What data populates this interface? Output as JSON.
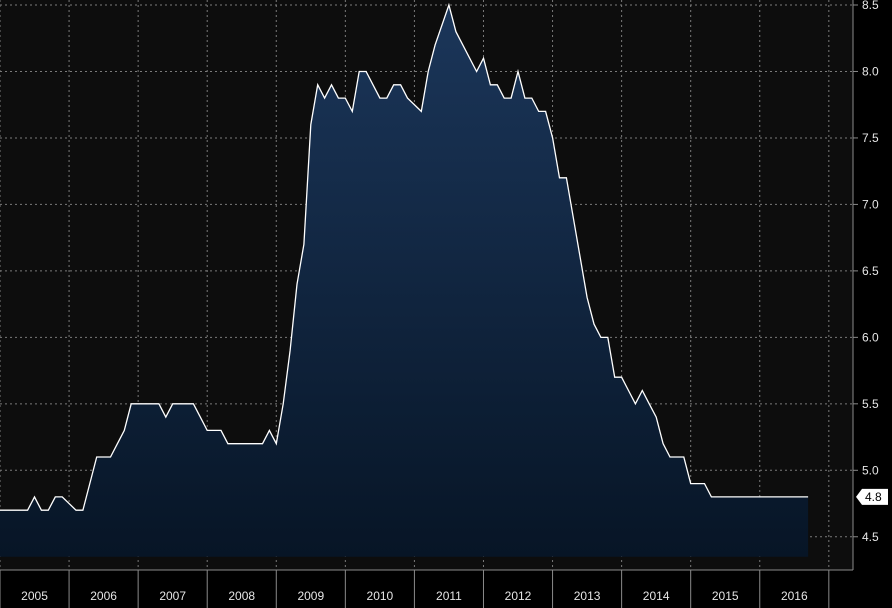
{
  "chart_data": {
    "type": "area",
    "title": "",
    "xlabel": "",
    "ylabel": "",
    "x_tick_labels": [
      "2005",
      "2006",
      "2007",
      "2008",
      "2009",
      "2010",
      "2011",
      "2012",
      "2013",
      "2014",
      "2015",
      "2016"
    ],
    "y_tick_labels": [
      "4.5",
      "5.0",
      "5.5",
      "6.0",
      "6.5",
      "7.0",
      "7.5",
      "8.0",
      "8.5"
    ],
    "ylim": [
      4.25,
      8.5
    ],
    "xlim": [
      2004.5,
      2016.85
    ],
    "grid": true,
    "last_value_label": "4.8",
    "colors": {
      "background": "#000000",
      "line": "#ffffff",
      "fill_top": "#1b365a",
      "fill_bottom": "#071526",
      "grid": "#7a7a7a",
      "badge": "#ffffff"
    },
    "series": [
      {
        "x": [
          2004.5,
          2004.9,
          2005.0,
          2005.1,
          2005.2,
          2005.3,
          2005.4,
          2005.6,
          2005.7,
          2005.9,
          2006.1,
          2006.2,
          2006.3,
          2006.4,
          2006.5,
          2006.8,
          2006.9,
          2007.0,
          2007.3,
          2007.4,
          2007.5,
          2007.7,
          2007.8,
          2008.0,
          2008.3,
          2008.4,
          2008.5,
          2008.6,
          2008.7,
          2008.8,
          2008.9,
          2009.0,
          2009.1,
          2009.2,
          2009.3,
          2009.4,
          2009.5,
          2009.6,
          2009.7,
          2009.8,
          2009.9,
          2010.0,
          2010.1,
          2010.2,
          2010.3,
          2010.4,
          2010.6,
          2010.7,
          2010.8,
          2011.0,
          2011.1,
          2011.2,
          2011.4,
          2011.5,
          2011.6,
          2011.7,
          2011.8,
          2011.9,
          2012.0,
          2012.1,
          2012.2,
          2012.3,
          2012.4,
          2012.5,
          2012.6,
          2012.7,
          2012.8,
          2012.9,
          2013.0,
          2013.1,
          2013.2,
          2013.3,
          2013.4,
          2013.5,
          2013.6,
          2013.7,
          2013.8,
          2013.9,
          2014.0,
          2014.1,
          2014.2,
          2014.3,
          2014.4,
          2014.5,
          2014.6,
          2014.7,
          2014.8,
          2014.9,
          2015.0,
          2015.1,
          2015.3,
          2015.4,
          2015.6,
          2015.7,
          2015.8,
          2015.9,
          2016.0,
          2016.1,
          2016.2
        ],
        "y": [
          4.7,
          4.7,
          4.8,
          4.7,
          4.7,
          4.8,
          4.8,
          4.7,
          4.7,
          5.1,
          5.1,
          5.2,
          5.3,
          5.5,
          5.5,
          5.5,
          5.4,
          5.5,
          5.5,
          5.4,
          5.3,
          5.3,
          5.2,
          5.2,
          5.2,
          5.3,
          5.2,
          5.5,
          5.9,
          6.4,
          6.7,
          7.6,
          7.9,
          7.8,
          7.9,
          7.8,
          7.8,
          7.7,
          8.0,
          8.0,
          7.9,
          7.8,
          7.8,
          7.9,
          7.9,
          7.8,
          7.7,
          8.0,
          8.2,
          8.5,
          8.3,
          8.2,
          8.0,
          8.1,
          7.9,
          7.9,
          7.8,
          7.8,
          8.0,
          7.8,
          7.8,
          7.7,
          7.7,
          7.5,
          7.2,
          7.2,
          6.9,
          6.6,
          6.3,
          6.1,
          6.0,
          6.0,
          5.7,
          5.7,
          5.6,
          5.5,
          5.6,
          5.5,
          5.4,
          5.2,
          5.1,
          5.1,
          5.1,
          4.9,
          4.9,
          4.9,
          4.8,
          4.8,
          4.8,
          4.8,
          4.8,
          4.8,
          4.8,
          4.8,
          4.8,
          4.8,
          4.8,
          4.8,
          4.8
        ]
      }
    ]
  }
}
